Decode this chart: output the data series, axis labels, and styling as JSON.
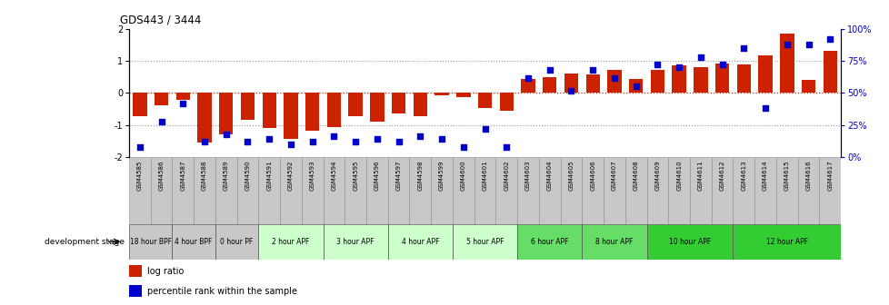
{
  "title": "GDS443 / 3444",
  "gsm_labels": [
    "GSM4585",
    "GSM4586",
    "GSM4587",
    "GSM4588",
    "GSM4589",
    "GSM4590",
    "GSM4591",
    "GSM4592",
    "GSM4593",
    "GSM4594",
    "GSM4595",
    "GSM4596",
    "GSM4597",
    "GSM4598",
    "GSM4599",
    "GSM4600",
    "GSM4601",
    "GSM4602",
    "GSM4603",
    "GSM4604",
    "GSM4605",
    "GSM4606",
    "GSM4607",
    "GSM4608",
    "GSM4609",
    "GSM4610",
    "GSM4611",
    "GSM4612",
    "GSM4613",
    "GSM4614",
    "GSM4615",
    "GSM4616",
    "GSM4617"
  ],
  "log_ratio": [
    -0.72,
    -0.38,
    -0.22,
    -1.55,
    -1.28,
    -0.85,
    -1.1,
    -1.42,
    -1.18,
    -1.05,
    -0.72,
    -0.88,
    -0.65,
    -0.72,
    -0.08,
    -0.12,
    -0.48,
    -0.55,
    0.45,
    0.5,
    0.62,
    0.58,
    0.72,
    0.45,
    0.72,
    0.85,
    0.82,
    0.92,
    0.88,
    1.18,
    1.85,
    0.42,
    1.32
  ],
  "percentile_rank": [
    8,
    28,
    42,
    12,
    18,
    12,
    14,
    10,
    12,
    16,
    12,
    14,
    12,
    16,
    14,
    8,
    22,
    8,
    62,
    68,
    52,
    68,
    62,
    55,
    72,
    70,
    78,
    72,
    85,
    38,
    88,
    88,
    92
  ],
  "bar_color": "#cc2200",
  "dot_color": "#0000cc",
  "bg_color": "#ffffff",
  "left_yticks": [
    -2,
    -1,
    0,
    1,
    2
  ],
  "right_yticks": [
    0,
    25,
    50,
    75,
    100
  ],
  "right_ytick_labels": [
    "0%",
    "25%",
    "50%",
    "75%",
    "100%"
  ],
  "stage_groups": [
    {
      "label": "18 hour BPF",
      "start": 0,
      "end": 1,
      "color": "#c8c8c8"
    },
    {
      "label": "4 hour BPF",
      "start": 2,
      "end": 3,
      "color": "#c8c8c8"
    },
    {
      "label": "0 hour PF",
      "start": 4,
      "end": 5,
      "color": "#c8c8c8"
    },
    {
      "label": "2 hour APF",
      "start": 6,
      "end": 8,
      "color": "#ccffcc"
    },
    {
      "label": "3 hour APF",
      "start": 9,
      "end": 11,
      "color": "#ccffcc"
    },
    {
      "label": "4 hour APF",
      "start": 12,
      "end": 14,
      "color": "#ccffcc"
    },
    {
      "label": "5 hour APF",
      "start": 15,
      "end": 17,
      "color": "#ccffcc"
    },
    {
      "label": "6 hour APF",
      "start": 18,
      "end": 20,
      "color": "#66dd66"
    },
    {
      "label": "8 hour APF",
      "start": 21,
      "end": 23,
      "color": "#66dd66"
    },
    {
      "label": "10 hour APF",
      "start": 24,
      "end": 27,
      "color": "#33cc33"
    },
    {
      "label": "12 hour APF",
      "start": 28,
      "end": 32,
      "color": "#33cc33"
    }
  ],
  "gsm_box_color": "#c8c8c8",
  "legend_log_ratio": "log ratio",
  "legend_percentile": "percentile rank within the sample",
  "dev_stage_label": "development stage"
}
